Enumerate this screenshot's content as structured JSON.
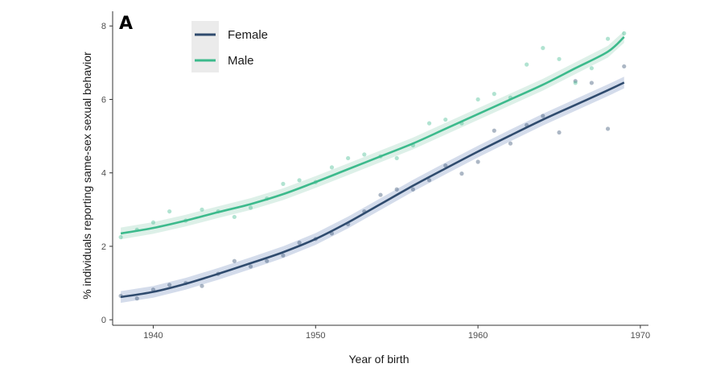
{
  "chart_data": {
    "type": "scatter",
    "panel_label": "A",
    "title": "",
    "xlabel": "Year of birth",
    "ylabel": "% individuals reporting same-sex sexual behavior",
    "xlim": [
      1937.5,
      1970.5
    ],
    "ylim": [
      -0.15,
      8.4
    ],
    "xticks": [
      1940,
      1950,
      1960,
      1970
    ],
    "yticks": [
      0,
      2,
      4,
      6,
      8
    ],
    "legend_position": "top-left",
    "grid": false,
    "series": [
      {
        "name": "Female",
        "color": "#2f4b6e",
        "band_color": "#c9d3e6",
        "points": [
          [
            1938,
            0.65
          ],
          [
            1939,
            0.58
          ],
          [
            1940,
            0.82
          ],
          [
            1941,
            0.95
          ],
          [
            1942,
            1.0
          ],
          [
            1943,
            0.92
          ],
          [
            1944,
            1.25
          ],
          [
            1945,
            1.6
          ],
          [
            1946,
            1.45
          ],
          [
            1947,
            1.6
          ],
          [
            1948,
            1.75
          ],
          [
            1949,
            2.1
          ],
          [
            1950,
            2.2
          ],
          [
            1951,
            2.35
          ],
          [
            1952,
            2.6
          ],
          [
            1953,
            2.95
          ],
          [
            1954,
            3.4
          ],
          [
            1955,
            3.55
          ],
          [
            1956,
            3.55
          ],
          [
            1957,
            3.8
          ],
          [
            1958,
            4.2
          ],
          [
            1959,
            3.98
          ],
          [
            1960,
            4.3
          ],
          [
            1961,
            5.15
          ],
          [
            1962,
            4.8
          ],
          [
            1963,
            5.3
          ],
          [
            1964,
            5.55
          ],
          [
            1965,
            5.1
          ],
          [
            1966,
            6.5
          ],
          [
            1967,
            6.45
          ],
          [
            1968,
            5.2
          ],
          [
            1969,
            6.9
          ]
        ],
        "trend": [
          [
            1938,
            0.62
          ],
          [
            1940,
            0.76
          ],
          [
            1942,
            0.98
          ],
          [
            1944,
            1.25
          ],
          [
            1946,
            1.54
          ],
          [
            1948,
            1.84
          ],
          [
            1950,
            2.2
          ],
          [
            1952,
            2.65
          ],
          [
            1954,
            3.15
          ],
          [
            1956,
            3.65
          ],
          [
            1958,
            4.12
          ],
          [
            1960,
            4.58
          ],
          [
            1962,
            5.02
          ],
          [
            1964,
            5.45
          ],
          [
            1966,
            5.85
          ],
          [
            1968,
            6.25
          ],
          [
            1969,
            6.46
          ]
        ]
      },
      {
        "name": "Male",
        "color": "#3cba8c",
        "band_color": "#d4ece2",
        "points": [
          [
            1938,
            2.25
          ],
          [
            1939,
            2.45
          ],
          [
            1940,
            2.65
          ],
          [
            1941,
            2.95
          ],
          [
            1942,
            2.7
          ],
          [
            1943,
            3.0
          ],
          [
            1944,
            2.95
          ],
          [
            1945,
            2.8
          ],
          [
            1946,
            3.05
          ],
          [
            1947,
            3.3
          ],
          [
            1948,
            3.7
          ],
          [
            1949,
            3.8
          ],
          [
            1950,
            3.75
          ],
          [
            1951,
            4.15
          ],
          [
            1952,
            4.4
          ],
          [
            1953,
            4.5
          ],
          [
            1954,
            4.45
          ],
          [
            1955,
            4.4
          ],
          [
            1956,
            4.75
          ],
          [
            1957,
            5.35
          ],
          [
            1958,
            5.45
          ],
          [
            1959,
            5.35
          ],
          [
            1960,
            6.0
          ],
          [
            1961,
            6.15
          ],
          [
            1962,
            6.05
          ],
          [
            1963,
            6.95
          ],
          [
            1964,
            7.4
          ],
          [
            1965,
            7.1
          ],
          [
            1966,
            6.45
          ],
          [
            1967,
            6.85
          ],
          [
            1968,
            7.65
          ],
          [
            1969,
            7.8
          ]
        ],
        "trend": [
          [
            1938,
            2.35
          ],
          [
            1940,
            2.5
          ],
          [
            1942,
            2.7
          ],
          [
            1944,
            2.93
          ],
          [
            1946,
            3.15
          ],
          [
            1948,
            3.42
          ],
          [
            1950,
            3.75
          ],
          [
            1952,
            4.1
          ],
          [
            1954,
            4.45
          ],
          [
            1956,
            4.8
          ],
          [
            1958,
            5.2
          ],
          [
            1960,
            5.6
          ],
          [
            1962,
            6.0
          ],
          [
            1964,
            6.4
          ],
          [
            1966,
            6.85
          ],
          [
            1968,
            7.3
          ],
          [
            1969,
            7.7
          ]
        ]
      }
    ]
  }
}
